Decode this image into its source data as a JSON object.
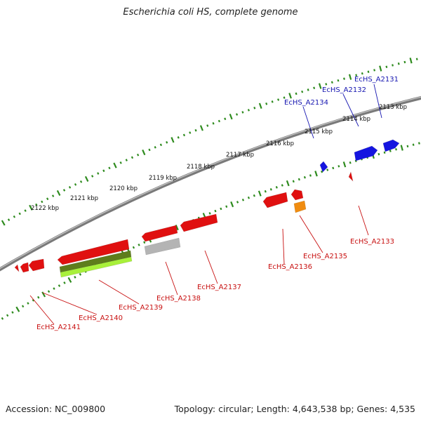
{
  "title": "Escherichia coli HS, complete genome",
  "footer": {
    "accession": "Accession: NC_009800",
    "topology": "Topology: circular; Length: 4,643,538 bp; Genes: 4,535"
  },
  "colors": {
    "backbone": "#7a7a7a",
    "ticks": "#2e8b1e",
    "forward_gene": "#1515e0",
    "forward_label": "#1515b0",
    "reverse_gene": "#e01010",
    "reverse_label": "#c81010",
    "olive_feature": "#5e7d1c",
    "lime_feature": "#a8f03a",
    "gray_feature": "#b4b4b4",
    "orange_feature": "#f08c10"
  },
  "scale_labels": [
    "2113 kbp",
    "2114 kbp",
    "2115 kbp",
    "2116 kbp",
    "2117 kbp",
    "2118 kbp",
    "2119 kbp",
    "2120 kbp",
    "2121 kbp",
    "2122 kbp"
  ],
  "forward_genes": [
    "EcHS_A2131",
    "EcHS_A2132",
    "EcHS_A2134"
  ],
  "reverse_genes": [
    "EcHS_A2133",
    "EcHS_A2135",
    "EcHS_A2136",
    "EcHS_A2137",
    "EcHS_A2138",
    "EcHS_A2139",
    "EcHS_A2140",
    "EcHS_A2141"
  ]
}
